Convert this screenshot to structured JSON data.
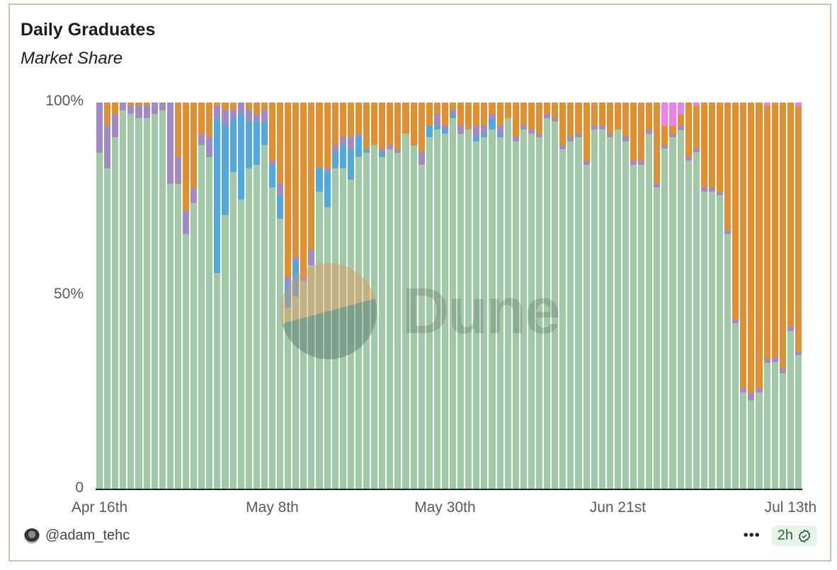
{
  "header": {
    "title": "Daily Graduates",
    "subtitle": "Market Share"
  },
  "footer": {
    "author": "@adam_tehc",
    "more_label": "•••",
    "freshness": "2h"
  },
  "colors": {
    "green": "#a1c9a7",
    "blue": "#53a8dc",
    "purple": "#a28ac4",
    "orange": "#e08f31",
    "pink": "#ee80ee"
  },
  "chart_data": {
    "type": "bar",
    "stacked": true,
    "normalized": true,
    "title": "Daily Graduates",
    "subtitle": "Market Share",
    "xlabel": "",
    "ylabel": "",
    "ylim": [
      0,
      100
    ],
    "yticks": [
      "0",
      "50%",
      "100%"
    ],
    "xticks": [
      {
        "label": "Apr 16th",
        "index": 0
      },
      {
        "label": "May 8th",
        "index": 22
      },
      {
        "label": "May 30th",
        "index": 44
      },
      {
        "label": "Jun 21st",
        "index": 66
      },
      {
        "label": "Jul 13th",
        "index": 88
      }
    ],
    "grid": false,
    "legend": "none",
    "series": [
      {
        "name": "green",
        "color": "#a1c9a7",
        "values": [
          87,
          83,
          91,
          98,
          97,
          96,
          96,
          97,
          98,
          79,
          79,
          66,
          74,
          89,
          86,
          56,
          71,
          82,
          75,
          83,
          84,
          89,
          78,
          70,
          47,
          50,
          54,
          58,
          77,
          73,
          83,
          83,
          80,
          86,
          87,
          89,
          86,
          88,
          87,
          92,
          88,
          84,
          91,
          93,
          92,
          96,
          92,
          93,
          90,
          91,
          93,
          91,
          96,
          90,
          93,
          92,
          91,
          96,
          95,
          88,
          90,
          91,
          84,
          93,
          93,
          91,
          93,
          90,
          84,
          84,
          92,
          78,
          89,
          91,
          92,
          85,
          88,
          77,
          77,
          76,
          66,
          43,
          25,
          23,
          25,
          33,
          33,
          30,
          41,
          35
        ]
      },
      {
        "name": "blue",
        "color": "#53a8dc",
        "values": [
          0,
          0,
          0,
          0,
          0,
          0,
          0,
          0,
          0,
          0,
          0,
          0,
          0,
          0,
          0,
          40,
          23,
          14,
          22,
          12,
          11,
          6,
          6,
          6,
          6,
          9,
          0,
          0,
          6,
          9,
          4,
          6,
          8,
          5,
          1,
          0,
          1,
          0,
          0,
          0,
          0,
          0,
          3,
          1,
          1,
          1,
          0,
          0,
          1,
          1,
          3,
          1,
          0,
          0,
          0,
          0,
          0,
          0,
          0,
          0,
          0,
          0,
          0,
          0,
          0,
          0,
          0,
          0,
          0,
          0,
          0,
          0,
          0,
          0,
          0,
          0,
          0,
          0,
          0,
          0,
          0,
          0,
          0,
          0,
          0,
          0,
          0,
          0,
          0,
          0
        ]
      },
      {
        "name": "purple",
        "color": "#a28ac4",
        "values": [
          13,
          11,
          6,
          2,
          2,
          3,
          3,
          3,
          2,
          21,
          7,
          6,
          4,
          3,
          5,
          3,
          4,
          2,
          3,
          3,
          2,
          3,
          1,
          3,
          2,
          1,
          1,
          4,
          0,
          1,
          2,
          2,
          3,
          1,
          0,
          0,
          1,
          1,
          1,
          0,
          0,
          3,
          0,
          3,
          1,
          1,
          2,
          0,
          3,
          2,
          1,
          2,
          0,
          1,
          1,
          1,
          1,
          1,
          1,
          1,
          1,
          1,
          1,
          1,
          1,
          1,
          0,
          1,
          1,
          1,
          1,
          1,
          1,
          1,
          1,
          1,
          1,
          1,
          1,
          1,
          1,
          1,
          1,
          2,
          1,
          1,
          1,
          1,
          1,
          1
        ]
      },
      {
        "name": "orange",
        "color": "#e08f31",
        "values": [
          0,
          6,
          3,
          0,
          1,
          1,
          1,
          0,
          0,
          0,
          14,
          28,
          22,
          8,
          9,
          1,
          2,
          2,
          0,
          2,
          3,
          2,
          15,
          21,
          45,
          40,
          45,
          38,
          17,
          17,
          11,
          9,
          9,
          8,
          12,
          11,
          12,
          11,
          12,
          8,
          11,
          13,
          6,
          3,
          6,
          2,
          6,
          7,
          6,
          6,
          3,
          6,
          4,
          9,
          6,
          7,
          8,
          3,
          4,
          11,
          9,
          8,
          15,
          6,
          6,
          8,
          7,
          9,
          15,
          15,
          7,
          21,
          5,
          2,
          3,
          14,
          11,
          22,
          22,
          23,
          33,
          56,
          74,
          75,
          74,
          66,
          66,
          69,
          58,
          64
        ]
      },
      {
        "name": "pink",
        "color": "#ee80ee",
        "values": [
          0,
          0,
          0,
          0,
          0,
          0,
          0,
          0,
          0,
          0,
          0,
          0,
          0,
          0,
          0,
          0,
          0,
          0,
          0,
          0,
          0,
          0,
          0,
          0,
          0,
          0,
          0,
          0,
          0,
          0,
          0,
          0,
          0,
          0,
          0,
          0,
          0,
          0,
          0,
          0,
          0,
          0,
          0,
          0,
          0,
          0,
          0,
          0,
          0,
          0,
          0,
          0,
          0,
          0,
          0,
          0,
          0,
          0,
          0,
          0,
          0,
          0,
          0,
          0,
          0,
          0,
          0,
          0,
          0,
          0,
          0,
          0,
          6,
          6,
          3,
          0,
          1,
          0,
          0,
          0,
          0,
          0,
          0,
          0,
          0,
          1,
          0,
          0,
          0,
          1
        ]
      }
    ]
  }
}
